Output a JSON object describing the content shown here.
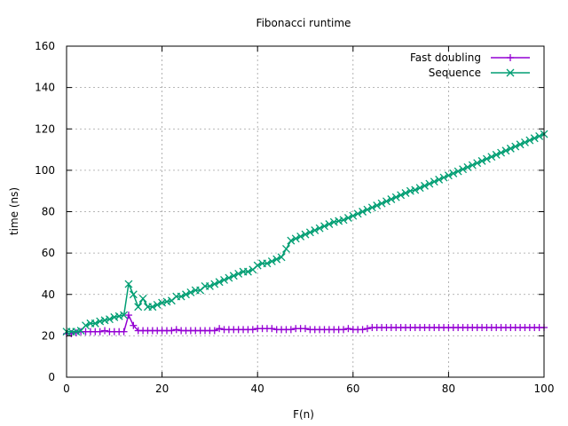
{
  "chart_data": {
    "type": "line",
    "title": "Fibonacci runtime",
    "xlabel": "F(n)",
    "ylabel": "time (ns)",
    "xlim": [
      0,
      100
    ],
    "ylim": [
      0,
      160
    ],
    "xticks": [
      0,
      20,
      40,
      60,
      80,
      100
    ],
    "yticks": [
      0,
      20,
      40,
      60,
      80,
      100,
      120,
      140,
      160
    ],
    "grid": true,
    "legend_position": "top-right",
    "series": [
      {
        "name": "Fast doubling",
        "color": "#9400d3",
        "marker": "plus",
        "x": [
          0,
          1,
          2,
          3,
          4,
          5,
          6,
          7,
          8,
          9,
          10,
          11,
          12,
          13,
          14,
          15,
          16,
          17,
          18,
          19,
          20,
          21,
          22,
          23,
          24,
          25,
          26,
          27,
          28,
          29,
          30,
          31,
          32,
          33,
          34,
          35,
          36,
          37,
          38,
          39,
          40,
          41,
          42,
          43,
          44,
          45,
          46,
          47,
          48,
          49,
          50,
          51,
          52,
          53,
          54,
          55,
          56,
          57,
          58,
          59,
          60,
          61,
          62,
          63,
          64,
          65,
          66,
          67,
          68,
          69,
          70,
          71,
          72,
          73,
          74,
          75,
          76,
          77,
          78,
          79,
          80,
          81,
          82,
          83,
          84,
          85,
          86,
          87,
          88,
          89,
          90,
          91,
          92,
          93,
          94,
          95,
          96,
          97,
          98,
          99,
          100
        ],
        "values": [
          21,
          21,
          21.5,
          22,
          22,
          22,
          22,
          22,
          22.5,
          22,
          22,
          22,
          22,
          30,
          25,
          22.5,
          22.5,
          22.5,
          22.5,
          22.5,
          22.5,
          22.5,
          22.5,
          23,
          22.5,
          22.5,
          22.5,
          22.5,
          22.5,
          22.5,
          22.5,
          22.5,
          23.5,
          23,
          23,
          23,
          23,
          23,
          23,
          23,
          23.5,
          23.5,
          23.5,
          23.5,
          23,
          23,
          23,
          23,
          23.5,
          23.5,
          23.5,
          23,
          23,
          23,
          23,
          23,
          23,
          23,
          23,
          23.5,
          23,
          23,
          23,
          23.5,
          24,
          24,
          24,
          24,
          24,
          24,
          24,
          24,
          24,
          24,
          24,
          24,
          24,
          24,
          24,
          24,
          24,
          24,
          24,
          24,
          24,
          24,
          24,
          24,
          24,
          24,
          24,
          24,
          24,
          24,
          24,
          24,
          24,
          24,
          24,
          24,
          24
        ]
      },
      {
        "name": "Sequence",
        "color": "#009e73",
        "marker": "x",
        "x": [
          0,
          1,
          2,
          3,
          4,
          5,
          6,
          7,
          8,
          9,
          10,
          11,
          12,
          13,
          14,
          15,
          16,
          17,
          18,
          19,
          20,
          21,
          22,
          23,
          24,
          25,
          26,
          27,
          28,
          29,
          30,
          31,
          32,
          33,
          34,
          35,
          36,
          37,
          38,
          39,
          40,
          41,
          42,
          43,
          44,
          45,
          46,
          47,
          48,
          49,
          50,
          51,
          52,
          53,
          54,
          55,
          56,
          57,
          58,
          59,
          60,
          61,
          62,
          63,
          64,
          65,
          66,
          67,
          68,
          69,
          70,
          71,
          72,
          73,
          74,
          75,
          76,
          77,
          78,
          79,
          80,
          81,
          82,
          83,
          84,
          85,
          86,
          87,
          88,
          89,
          90,
          91,
          92,
          93,
          94,
          95,
          96,
          97,
          98,
          99,
          100
        ],
        "values": [
          22,
          22,
          22,
          22.5,
          25,
          26,
          26,
          27,
          27.5,
          28,
          29,
          29.5,
          30,
          45,
          40,
          34,
          38,
          34,
          34,
          35,
          36,
          36.5,
          37,
          39,
          39,
          40,
          41,
          42,
          42,
          44,
          44,
          45,
          46,
          47,
          48,
          49,
          50,
          51,
          51,
          52,
          54,
          55,
          55,
          56,
          57,
          58,
          62,
          66,
          67,
          68,
          69,
          70,
          71,
          72,
          73,
          74,
          75,
          75.5,
          76,
          77,
          78,
          79,
          80,
          81,
          82,
          83,
          84,
          85,
          86,
          87,
          88,
          89,
          90,
          90.5,
          91.5,
          92.5,
          93.5,
          94.5,
          95.5,
          96.5,
          97.5,
          98.5,
          99.5,
          100.5,
          101.5,
          102.5,
          103.5,
          104.5,
          105.5,
          106.5,
          107.5,
          108.5,
          109.5,
          110.5,
          111.5,
          112.5,
          113.5,
          114.5,
          115.5,
          116.5,
          117.5
        ]
      }
    ]
  }
}
